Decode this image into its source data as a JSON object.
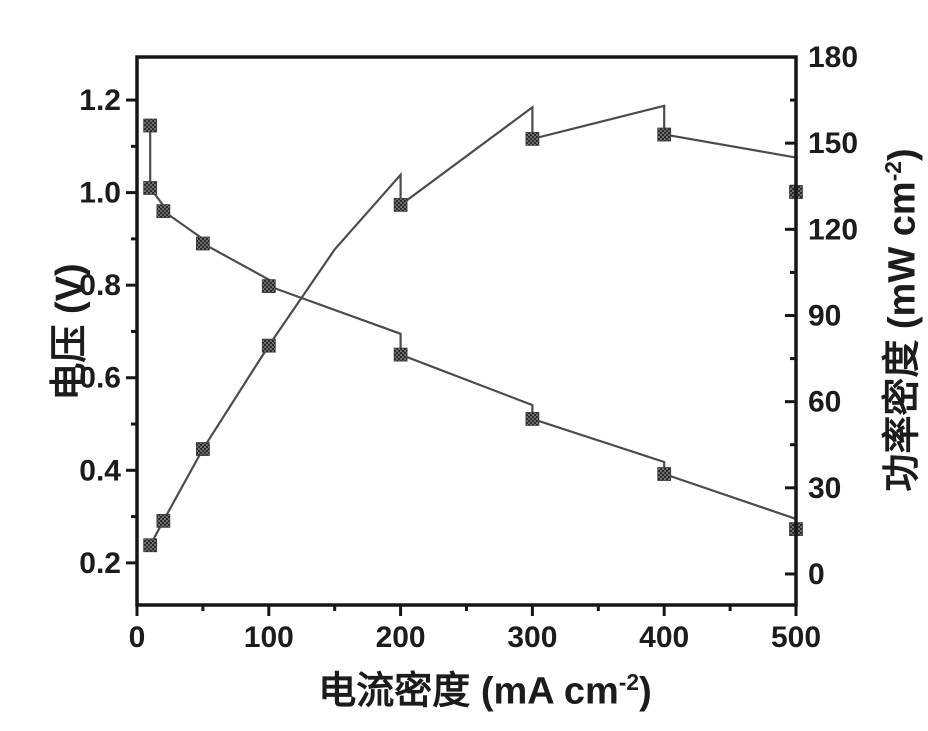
{
  "figure": {
    "background": "#ffffff",
    "ink_color": "#1c1c1c",
    "frame_color": "#161616",
    "line_color": "#4c4c4c",
    "marker_dark": "#2b2b2b",
    "marker_light": "#6e6e6e"
  },
  "chart_data": {
    "type": "line",
    "title": "",
    "grid": false,
    "legend": "none",
    "xlabel_pre": "电流密度 (mA cm",
    "xlabel_sup": "-2",
    "xlabel_post": ")",
    "ylabel_left": "电压 (V)",
    "ylabel_right_pre": "功率密度 (mW cm",
    "ylabel_right_sup": "-2",
    "ylabel_right_post": ")",
    "x_axis": {
      "lim": [
        0,
        500
      ],
      "major_ticks": [
        0,
        100,
        200,
        300,
        400,
        500
      ],
      "tick_labels": [
        "0",
        "100",
        "200",
        "300",
        "400",
        "500"
      ],
      "minor_ticks": [
        50,
        150,
        250,
        350,
        450
      ]
    },
    "y_left": {
      "lim": [
        0.109,
        1.293
      ],
      "major_ticks": [
        0.2,
        0.4,
        0.6,
        0.8,
        1.0,
        1.2
      ],
      "tick_labels": [
        "0.2",
        "0.4",
        "0.6",
        "0.8",
        "1.0",
        "1.2"
      ],
      "minor_ticks": [
        0.3,
        0.5,
        0.7,
        0.9,
        1.1
      ]
    },
    "y_right": {
      "lim": [
        -10.8,
        180
      ],
      "major_ticks": [
        0,
        30,
        60,
        90,
        120,
        150,
        180
      ],
      "tick_labels": [
        "0",
        "30",
        "60",
        "90",
        "120",
        "150",
        "180"
      ],
      "minor_ticks": [
        15,
        45,
        75,
        105,
        135,
        165
      ]
    },
    "series": [
      {
        "name": "电压",
        "axis": "left",
        "marker": "square",
        "path": [
          [
            10,
            1.145
          ],
          [
            10,
            1.01
          ],
          [
            20,
            0.972
          ],
          [
            20,
            0.96
          ],
          [
            50,
            0.9
          ],
          [
            50,
            0.89
          ],
          [
            100,
            0.812
          ],
          [
            100,
            0.798
          ],
          [
            200,
            0.695
          ],
          [
            200,
            0.65
          ],
          [
            300,
            0.541
          ],
          [
            300,
            0.511
          ],
          [
            400,
            0.418
          ],
          [
            400,
            0.392
          ],
          [
            500,
            0.295
          ],
          [
            500,
            0.273
          ]
        ],
        "markers": [
          [
            10,
            1.145
          ],
          [
            10,
            1.01
          ],
          [
            20,
            0.96
          ],
          [
            50,
            0.89
          ],
          [
            100,
            0.798
          ],
          [
            200,
            0.65
          ],
          [
            300,
            0.511
          ],
          [
            400,
            0.392
          ],
          [
            500,
            0.273
          ]
        ]
      },
      {
        "name": "功率密度",
        "axis": "right",
        "marker": "square",
        "path": [
          [
            10,
            10
          ],
          [
            20,
            18.5
          ],
          [
            50,
            43.5
          ],
          [
            100,
            79.5
          ],
          [
            150,
            113
          ],
          [
            200,
            139
          ],
          [
            200,
            128.5
          ],
          [
            300,
            162.5
          ],
          [
            300,
            151.5
          ],
          [
            400,
            163
          ],
          [
            400,
            153
          ],
          [
            500,
            145
          ],
          [
            500,
            133
          ]
        ],
        "markers": [
          [
            10,
            10
          ],
          [
            20,
            18.5
          ],
          [
            50,
            43.5
          ],
          [
            100,
            79.5
          ],
          [
            200,
            128.5
          ],
          [
            300,
            151.5
          ],
          [
            400,
            153
          ],
          [
            500,
            133
          ]
        ]
      }
    ]
  }
}
